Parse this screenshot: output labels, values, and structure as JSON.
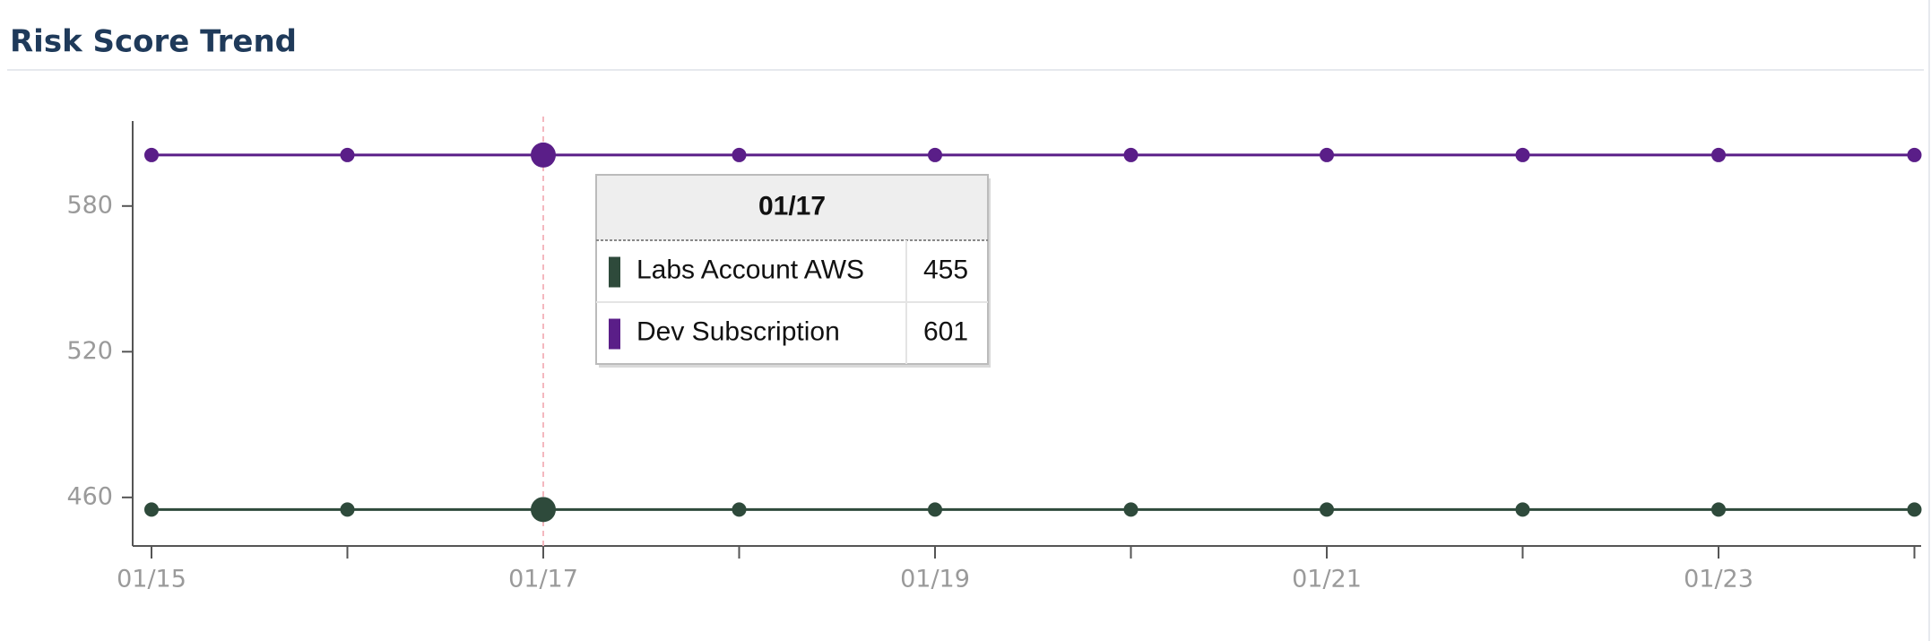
{
  "chart_data": {
    "type": "line",
    "title": "Risk Score Trend",
    "categories": [
      "01/15",
      null,
      "01/17",
      null,
      "01/19",
      null,
      "01/21",
      null,
      "01/23",
      null
    ],
    "series": [
      {
        "name": "Labs Account AWS",
        "color": "#2e4a3b",
        "values": [
          455,
          455,
          455,
          455,
          455,
          455,
          455,
          455,
          455,
          455
        ]
      },
      {
        "name": "Dev Subscription",
        "color": "#5a1e88",
        "values": [
          601,
          601,
          601,
          601,
          601,
          601,
          601,
          601,
          601,
          601
        ]
      }
    ],
    "ylim": [
      440,
      615
    ],
    "yticks": [
      460,
      520,
      580
    ]
  }
}
